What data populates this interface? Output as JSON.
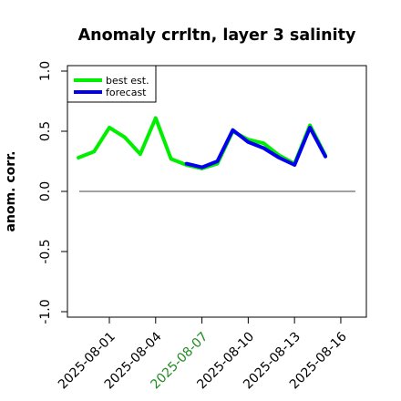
{
  "chart_data": {
    "type": "line",
    "title": "Anomaly crrltn, layer 3 salinity",
    "xlabel": "",
    "ylabel": "anom. corr.",
    "ylim": [
      -1.0,
      1.0
    ],
    "yticks": [
      "-1.0",
      "-0.5",
      "0.0",
      "0.5",
      "1.0"
    ],
    "xtick_labels": [
      {
        "label": "2025-08-01",
        "color": "#000000"
      },
      {
        "label": "2025-08-04",
        "color": "#000000"
      },
      {
        "label": "2025-08-07",
        "color": "#228B22"
      },
      {
        "label": "2025-08-10",
        "color": "#000000"
      },
      {
        "label": "2025-08-13",
        "color": "#000000"
      },
      {
        "label": "2025-08-16",
        "color": "#000000"
      }
    ],
    "reference_line": 0,
    "legend_position": "top-left",
    "series": [
      {
        "name": "best est.",
        "color": "#00ee00",
        "points": [
          [
            "2025-07-30",
            0.28
          ],
          [
            "2025-07-31",
            0.33
          ],
          [
            "2025-08-01",
            0.53
          ],
          [
            "2025-08-02",
            0.45
          ],
          [
            "2025-08-03",
            0.31
          ],
          [
            "2025-08-04",
            0.61
          ],
          [
            "2025-08-05",
            0.27
          ],
          [
            "2025-08-06",
            0.22
          ],
          [
            "2025-08-07",
            0.19
          ],
          [
            "2025-08-08",
            0.23
          ],
          [
            "2025-08-09",
            0.5
          ],
          [
            "2025-08-10",
            0.43
          ],
          [
            "2025-08-11",
            0.4
          ],
          [
            "2025-08-12",
            0.3
          ],
          [
            "2025-08-13",
            0.23
          ],
          [
            "2025-08-14",
            0.55
          ],
          [
            "2025-08-15",
            0.3
          ]
        ]
      },
      {
        "name": "forecast",
        "color": "#0000ee",
        "points": [
          [
            "2025-08-06",
            0.23
          ],
          [
            "2025-08-07",
            0.2
          ],
          [
            "2025-08-08",
            0.25
          ],
          [
            "2025-08-09",
            0.51
          ],
          [
            "2025-08-10",
            0.41
          ],
          [
            "2025-08-11",
            0.36
          ],
          [
            "2025-08-12",
            0.28
          ],
          [
            "2025-08-13",
            0.22
          ],
          [
            "2025-08-14",
            0.53
          ],
          [
            "2025-08-15",
            0.29
          ]
        ]
      }
    ]
  }
}
